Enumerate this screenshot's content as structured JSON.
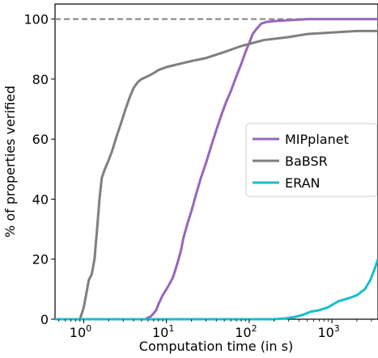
{
  "chart_data": {
    "type": "line",
    "xlabel": "Computation time (in s)",
    "ylabel": "% of properties verified",
    "x_scale": "log",
    "xlim": [
      0.45,
      3600
    ],
    "ylim": [
      0,
      105
    ],
    "x_ticks": [
      {
        "value": 1,
        "base": "10",
        "exp": "0"
      },
      {
        "value": 10,
        "base": "10",
        "exp": "1"
      },
      {
        "value": 100,
        "base": "10",
        "exp": "2"
      },
      {
        "value": 1000,
        "base": "10",
        "exp": "3"
      }
    ],
    "y_ticks": [
      0,
      20,
      40,
      60,
      80,
      100
    ],
    "reference_line": {
      "y": 100,
      "style": "dashed",
      "color": "#808080"
    },
    "legend_position": "center-right",
    "grid": false,
    "series": [
      {
        "name": "MIPplanet",
        "color": "#9467bd",
        "points": [
          [
            0.45,
            0
          ],
          [
            5.5,
            0
          ],
          [
            6.5,
            1
          ],
          [
            7,
            2
          ],
          [
            7.5,
            3
          ],
          [
            8,
            5
          ],
          [
            9,
            8
          ],
          [
            10,
            10
          ],
          [
            11,
            12
          ],
          [
            12,
            14
          ],
          [
            13,
            17
          ],
          [
            14,
            20
          ],
          [
            15,
            23
          ],
          [
            16,
            27
          ],
          [
            18,
            32
          ],
          [
            20,
            36
          ],
          [
            23,
            42
          ],
          [
            26,
            47
          ],
          [
            30,
            52
          ],
          [
            35,
            58
          ],
          [
            40,
            63
          ],
          [
            46,
            68
          ],
          [
            52,
            72
          ],
          [
            60,
            76
          ],
          [
            70,
            81
          ],
          [
            80,
            85
          ],
          [
            90,
            89
          ],
          [
            100,
            92
          ],
          [
            110,
            95
          ],
          [
            125,
            97
          ],
          [
            140,
            98.5
          ],
          [
            160,
            99
          ],
          [
            200,
            99.3
          ],
          [
            300,
            99.6
          ],
          [
            500,
            100
          ],
          [
            3600,
            100
          ]
        ]
      },
      {
        "name": "BaBSR",
        "color": "#7f7f7f",
        "points": [
          [
            0.45,
            0
          ],
          [
            0.9,
            0
          ],
          [
            0.95,
            2
          ],
          [
            1.0,
            4
          ],
          [
            1.05,
            7
          ],
          [
            1.1,
            10
          ],
          [
            1.15,
            13
          ],
          [
            1.25,
            15
          ],
          [
            1.35,
            20
          ],
          [
            1.45,
            30
          ],
          [
            1.55,
            40
          ],
          [
            1.65,
            47
          ],
          [
            1.8,
            50
          ],
          [
            2.0,
            53
          ],
          [
            2.2,
            56
          ],
          [
            2.5,
            61
          ],
          [
            2.8,
            65
          ],
          [
            3.2,
            70
          ],
          [
            3.6,
            74
          ],
          [
            4.0,
            77
          ],
          [
            4.5,
            79
          ],
          [
            5.0,
            80
          ],
          [
            6.0,
            81
          ],
          [
            7.0,
            82
          ],
          [
            8.0,
            83
          ],
          [
            10,
            84
          ],
          [
            14,
            85
          ],
          [
            20,
            86
          ],
          [
            30,
            87
          ],
          [
            50,
            89
          ],
          [
            80,
            91
          ],
          [
            150,
            93
          ],
          [
            300,
            94
          ],
          [
            500,
            95
          ],
          [
            1000,
            95.5
          ],
          [
            2000,
            96
          ],
          [
            3600,
            96
          ]
        ]
      },
      {
        "name": "ERAN",
        "color": "#17becf",
        "points": [
          [
            0.45,
            0
          ],
          [
            200,
            0
          ],
          [
            280,
            0.3
          ],
          [
            350,
            0.7
          ],
          [
            450,
            1.5
          ],
          [
            550,
            2.5
          ],
          [
            700,
            3
          ],
          [
            900,
            4
          ],
          [
            1200,
            6
          ],
          [
            1600,
            7
          ],
          [
            2000,
            8
          ],
          [
            2500,
            10
          ],
          [
            2900,
            13
          ],
          [
            3200,
            16
          ],
          [
            3600,
            20
          ]
        ]
      }
    ]
  }
}
